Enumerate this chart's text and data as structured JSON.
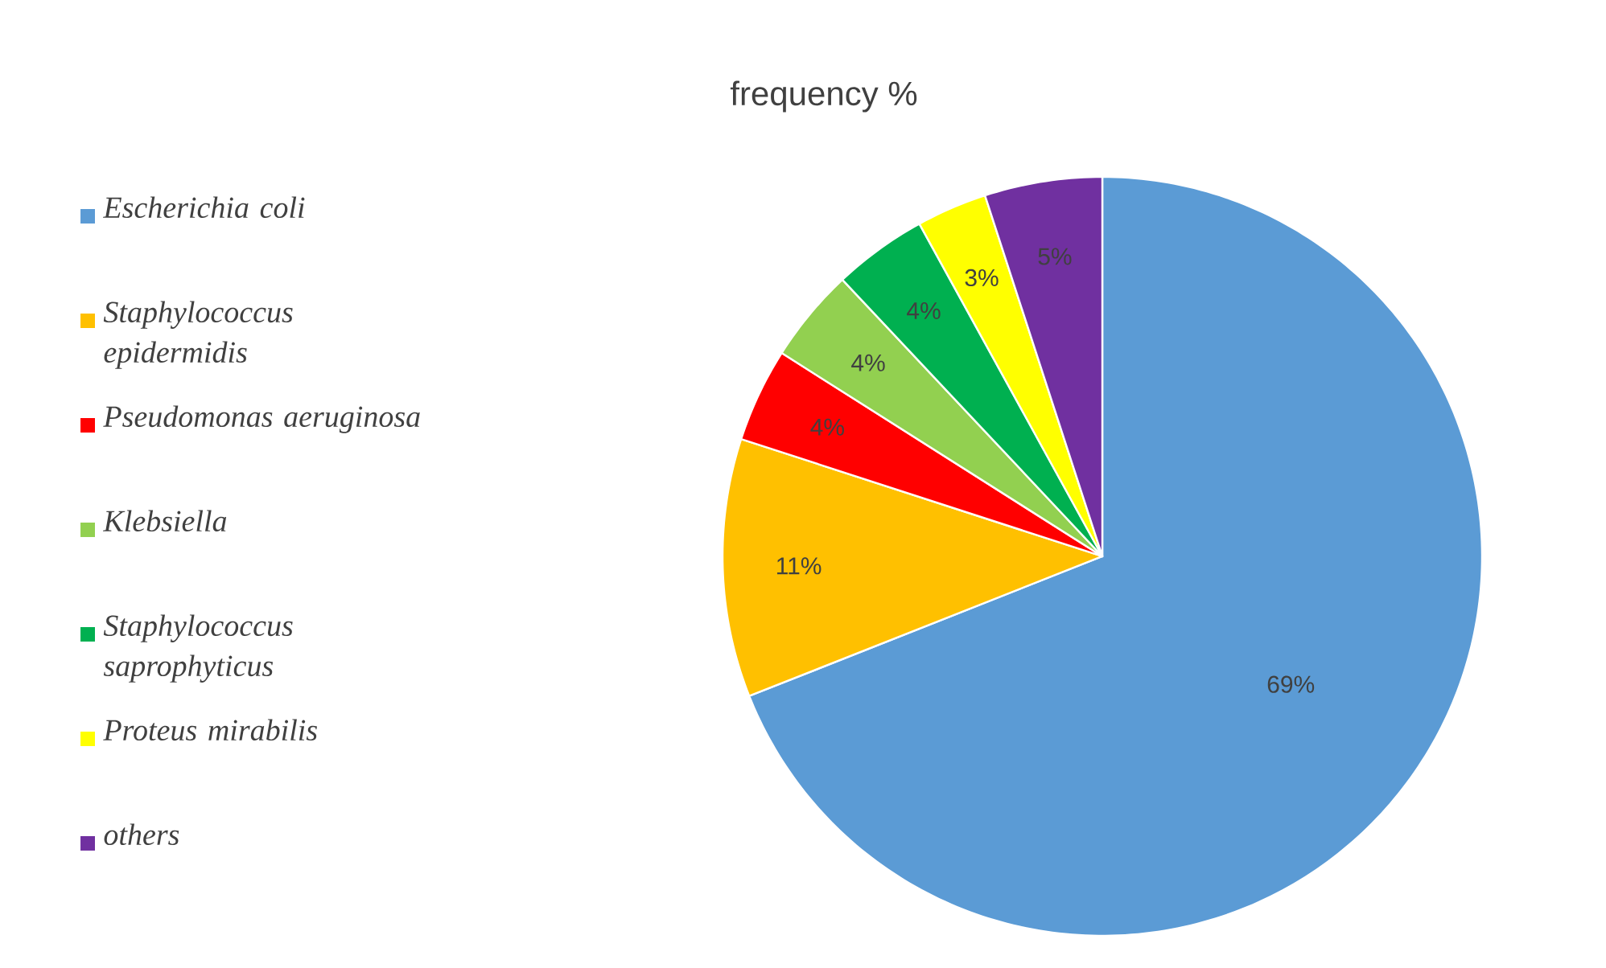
{
  "chart_data": {
    "type": "pie",
    "title": "frequency %",
    "categories": [
      "Escherichia coli",
      "Staphylococcus epidermidis",
      "Pseudomonas aeruginosa",
      "Klebsiella",
      "Staphylococcus saprophyticus",
      "Proteus mirabilis",
      "others"
    ],
    "values": [
      69,
      11,
      4,
      4,
      4,
      3,
      5
    ],
    "colors": [
      "#5b9bd5",
      "#ffc000",
      "#ff0000",
      "#92d050",
      "#00b050",
      "#ffff00",
      "#7030a0"
    ],
    "value_labels": [
      "69%",
      "11%",
      "4%",
      "4%",
      "4%",
      "3%",
      "5%"
    ],
    "legend": "left"
  }
}
